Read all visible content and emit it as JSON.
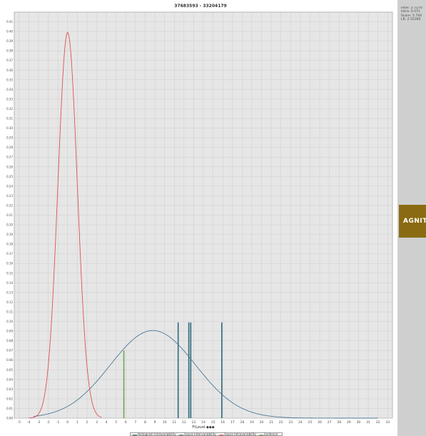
{
  "window": {
    "title": "37683593 - 33204179",
    "stats": [
      "Inter: 2.7270",
      "Intra: 0.071",
      "Score: 5.744",
      "LR: 2.55285"
    ],
    "brand": "AGNITIO"
  },
  "chart_data": {
    "type": "line",
    "title": "37683593 - 33204179",
    "xlabel": "FtLevel ◆◆◆",
    "ylabel": "",
    "xlim": [
      -5.5,
      33.5
    ],
    "ylim": [
      0,
      0.42
    ],
    "x_ticks": [
      -5,
      -4,
      -3,
      -2,
      -1,
      0,
      1,
      2,
      3,
      4,
      5,
      6,
      7,
      8,
      9,
      10,
      11,
      12,
      13,
      14,
      15,
      16,
      17,
      18,
      19,
      20,
      21,
      22,
      23,
      24,
      25,
      26,
      27,
      28,
      29,
      30,
      31,
      32,
      33
    ],
    "y_ticks": [
      0,
      0.01,
      0.02,
      0.03,
      0.04,
      0.05,
      0.06,
      0.07,
      0.08,
      0.09,
      0.1,
      0.11,
      0.12,
      0.13,
      0.14,
      0.15,
      0.16,
      0.17,
      0.18,
      0.19,
      0.2,
      0.21,
      0.22,
      0.23,
      0.24,
      0.25,
      0.26,
      0.27,
      0.28,
      0.29,
      0.3,
      0.31,
      0.32,
      0.33,
      0.34,
      0.35,
      0.36,
      0.37,
      0.38,
      0.39,
      0.4,
      0.41
    ],
    "grid": true,
    "legend_position": "bottom-center",
    "series": [
      {
        "name": "Histogram Intravariability",
        "style": "bars",
        "color": "#2e6a7a",
        "x": [
          11.4,
          12.5,
          12.7,
          15.9
        ],
        "values": [
          0.099,
          0.099,
          0.099,
          0.099
        ]
      },
      {
        "name": "Gauss Intervariability",
        "style": "curve",
        "color": "#4d7a96",
        "mean": 8.8,
        "sd": 4.4,
        "x_range": [
          -3.5,
          32
        ]
      },
      {
        "name": "Gauss Intravariability",
        "style": "curve",
        "color": "#e05050",
        "mean": 0.0,
        "sd": 1.0,
        "x_range": [
          -4,
          3.5
        ]
      },
      {
        "name": "Evidence",
        "style": "bars",
        "color": "#6aa84f",
        "x": [
          5.8
        ],
        "values": [
          0.07
        ]
      }
    ]
  },
  "colors": {
    "plot_bg": "#e6e6e6",
    "grid": "#cdcdcd",
    "panel": "#cfcfcf",
    "brand": "#8a6b12"
  }
}
